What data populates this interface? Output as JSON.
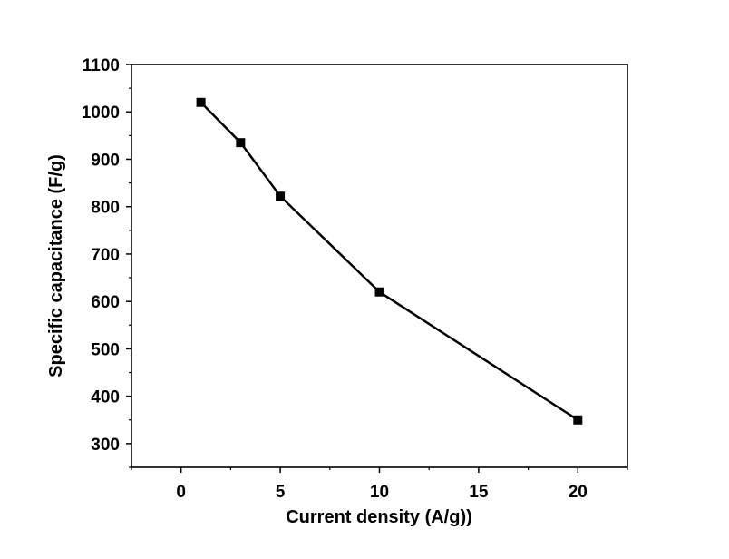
{
  "chart_data": {
    "type": "line",
    "title": "",
    "xlabel": "Current density (A/g))",
    "ylabel": "Specific capacitance (F/g)",
    "xlim": [
      -2.5,
      22.5
    ],
    "ylim": [
      250,
      1100
    ],
    "xticks": [
      0,
      5,
      10,
      15,
      20
    ],
    "yticks": [
      300,
      400,
      500,
      600,
      700,
      800,
      900,
      1000,
      1100
    ],
    "grid": false,
    "legend": "none",
    "series": [
      {
        "x": [
          1,
          3,
          5,
          10,
          20
        ],
        "values": [
          1020,
          935,
          822,
          620,
          350
        ],
        "marker": "square",
        "color": "#000000"
      }
    ]
  }
}
